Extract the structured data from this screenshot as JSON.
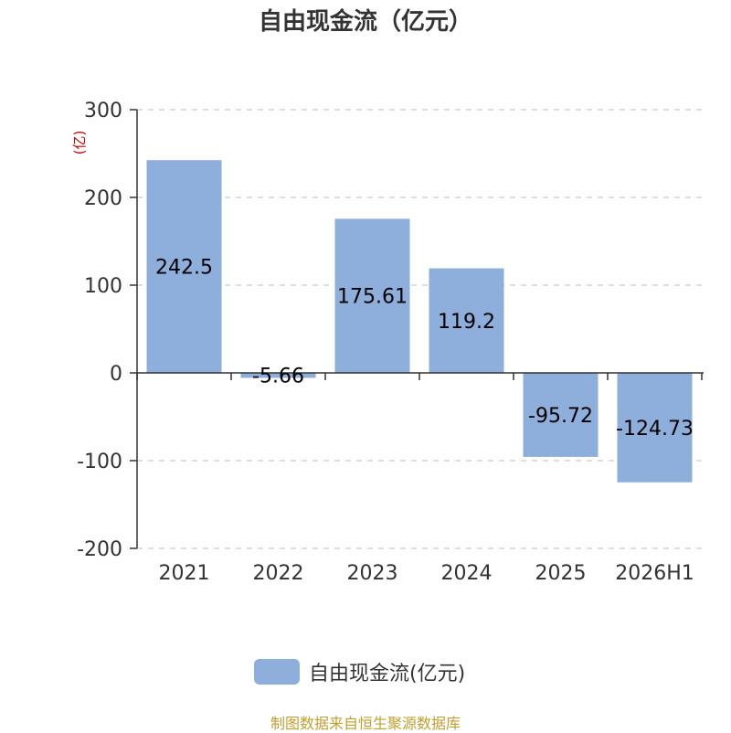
{
  "title": "自由现金流（亿元）",
  "unit_label": "(亿)",
  "source_note": "制图数据来自恒生聚源数据库",
  "colors": {
    "bar": "#8eaedb",
    "axis": "#333333",
    "grid": "#cccccc",
    "unit_label": "#cc0000",
    "source_note": "#c0a030"
  },
  "chart_data": {
    "type": "bar",
    "title": "自由现金流（亿元）",
    "ylabel": "(亿)",
    "xlabel": "",
    "categories": [
      "2021",
      "2022",
      "2023",
      "2024",
      "2025",
      "2026H1"
    ],
    "series": [
      {
        "name": "自由现金流(亿元)",
        "values": [
          242.5,
          -5.66,
          175.61,
          119.2,
          -95.72,
          -124.73
        ],
        "labels": [
          "242.5",
          "-5.66",
          "175.61",
          "119.2",
          "-95.72",
          "-124.73"
        ]
      }
    ],
    "ylim": [
      -200,
      300
    ],
    "yticks": [
      300,
      200,
      100,
      0,
      -100,
      -200
    ],
    "ytick_labels": [
      "300",
      "200",
      "100",
      "0",
      "-100",
      "-200"
    ],
    "grid": true,
    "legend": "bottom-center"
  }
}
